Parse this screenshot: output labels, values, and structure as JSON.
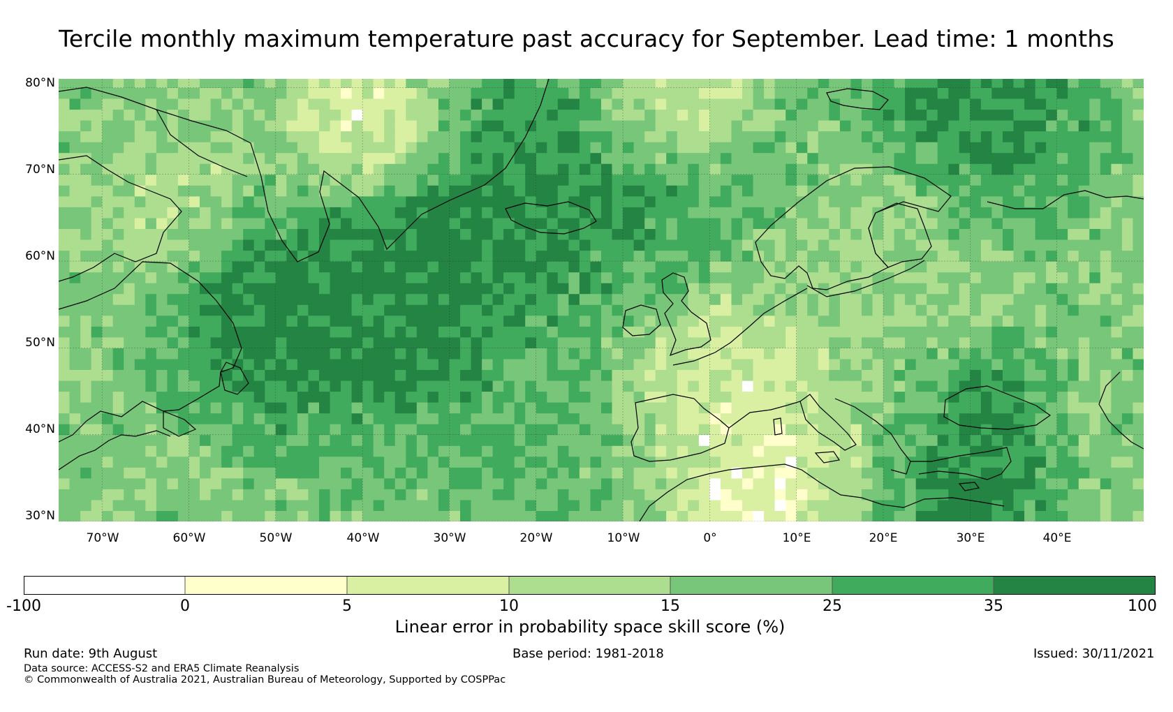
{
  "title": "Tercile monthly maximum temperature past accuracy for September. Lead time: 1 months",
  "map": {
    "region": "North Atlantic and Europe",
    "lon_range": [
      -75,
      50
    ],
    "lat_range": [
      30,
      81
    ],
    "lat_ticks": [
      {
        "value": 80,
        "label": "80°N"
      },
      {
        "value": 70,
        "label": "70°N"
      },
      {
        "value": 60,
        "label": "60°N"
      },
      {
        "value": 50,
        "label": "50°N"
      },
      {
        "value": 40,
        "label": "40°N"
      },
      {
        "value": 30,
        "label": "30°N"
      }
    ],
    "lon_ticks": [
      {
        "value": -70,
        "label": "70°W"
      },
      {
        "value": -60,
        "label": "60°W"
      },
      {
        "value": -50,
        "label": "50°W"
      },
      {
        "value": -40,
        "label": "40°W"
      },
      {
        "value": -30,
        "label": "30°W"
      },
      {
        "value": -20,
        "label": "20°W"
      },
      {
        "value": -10,
        "label": "10°W"
      },
      {
        "value": 0,
        "label": "0°"
      },
      {
        "value": 10,
        "label": "10°E"
      },
      {
        "value": 20,
        "label": "20°E"
      },
      {
        "value": 30,
        "label": "30°E"
      },
      {
        "value": 40,
        "label": "40°E"
      }
    ],
    "gridlines": true,
    "coastlines": true
  },
  "colorbar": {
    "label": "Linear error in probability space skill score (%)",
    "boundaries": [
      "-100",
      "0",
      "5",
      "10",
      "15",
      "25",
      "35",
      "100"
    ],
    "colors": [
      "#ffffff",
      "#ffffcc",
      "#d9f0a3",
      "#addd8e",
      "#78c679",
      "#41ab5d",
      "#238443"
    ]
  },
  "footer": {
    "run_date": "Run date: 9th August",
    "base_period": "Base period: 1981-2018",
    "issued": "Issued: 30/11/2021",
    "data_source": "Data source: ACCESS-S2 and ERA5 Climate Reanalysis",
    "copyright": "© Commonwealth of Australia 2021, Australian Bureau of Meteorology, Supported by COSPPac"
  }
}
